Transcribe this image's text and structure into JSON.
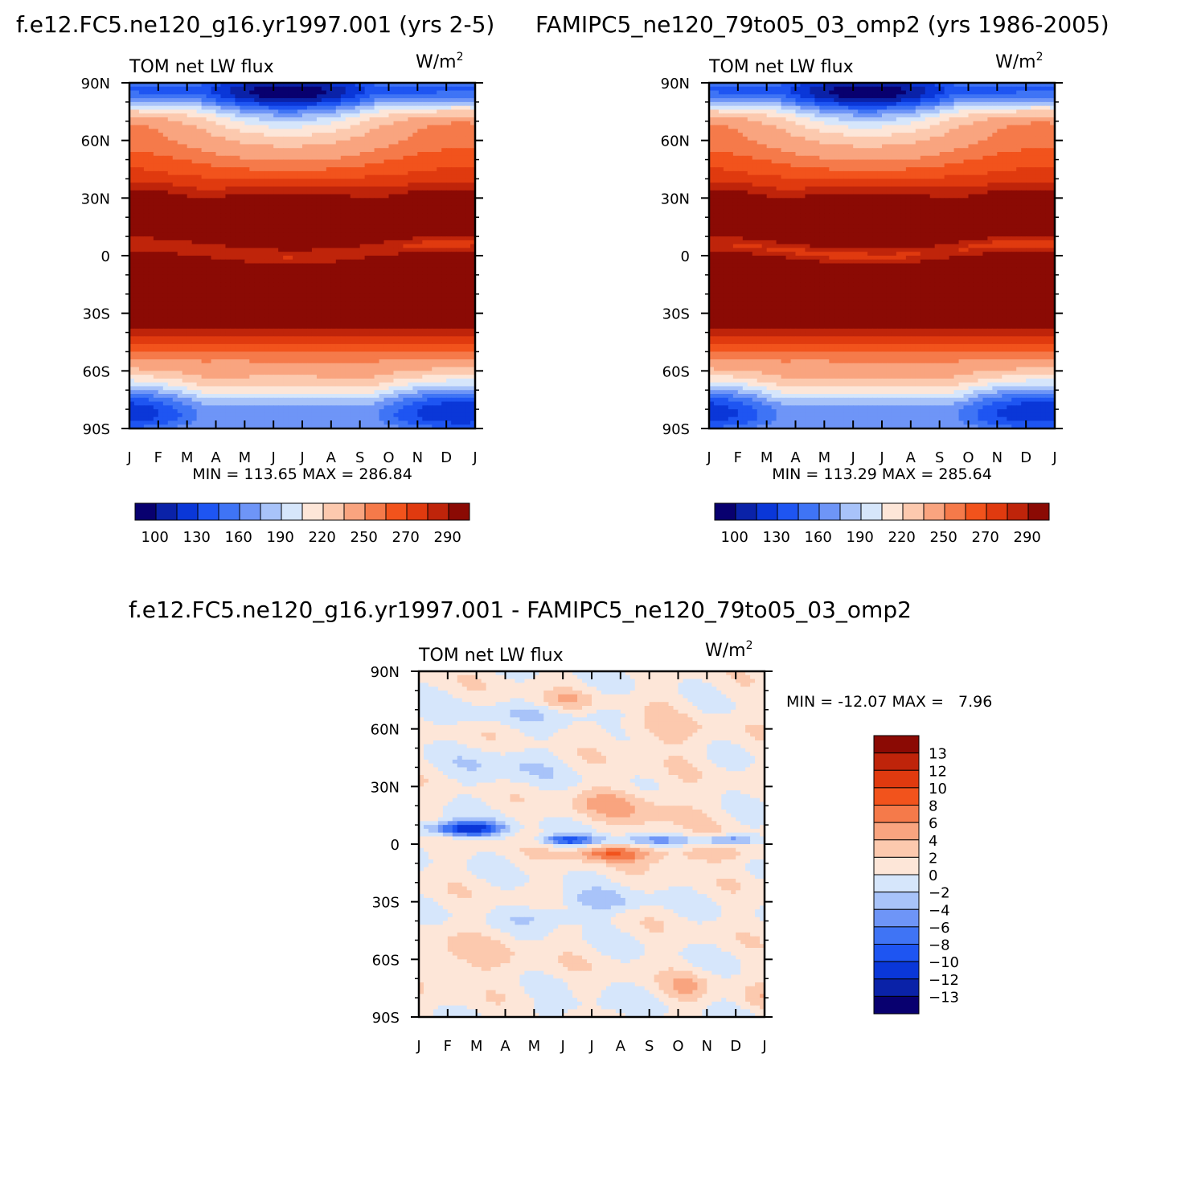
{
  "page": {
    "title_left": "f.e12.FC5.ne120_g16.yr1997.001 (yrs 2-5)",
    "title_right": "FAMIPC5_ne120_79to05_03_omp2 (yrs 1986-2005)",
    "title_diff": "f.e12.FC5.ne120_g16.yr1997.001 - FAMIPC5_ne120_79to05_03_omp2"
  },
  "chart_data": [
    {
      "type": "heatmap",
      "name": "model-panel",
      "variable": "TOM net LW flux",
      "units": "W/m",
      "units_exp": "2",
      "stats": "MIN = 113.65 MAX = 286.84",
      "x_ticks": [
        "J",
        "F",
        "M",
        "A",
        "M",
        "J",
        "J",
        "A",
        "S",
        "O",
        "N",
        "D",
        "J"
      ],
      "y_ticks": [
        "90N",
        "60N",
        "30N",
        "0",
        "30S",
        "60S",
        "90S"
      ],
      "xlim": [
        0,
        12
      ],
      "ylim": [
        -90,
        90
      ],
      "colorbar_labels": [
        "100",
        "130",
        "160",
        "190",
        "220",
        "250",
        "270",
        "290"
      ],
      "field": {
        "params": [
          222,
          85,
          -10,
          25,
          -28,
          20,
          28,
          20,
          10,
          15,
          -105,
          30,
          -118,
          22,
          -55,
          25
        ]
      },
      "levels": [
        100,
        115,
        130,
        145,
        160,
        175,
        190,
        205,
        220,
        235,
        250,
        260,
        270,
        280,
        290
      ],
      "colors": [
        "#08006f",
        "#0a22a8",
        "#0a37d8",
        "#1e55f2",
        "#3f74f5",
        "#6e95f7",
        "#a8c3f9",
        "#d6e6fb",
        "#fde6d8",
        "#fcc9ae",
        "#f9a47f",
        "#f57a4a",
        "#f2531c",
        "#e03a0f",
        "#bf240a",
        "#8b0a04"
      ]
    },
    {
      "type": "heatmap",
      "name": "reference-panel",
      "variable": "TOM net LW flux",
      "units": "W/m",
      "units_exp": "2",
      "stats": "MIN = 113.29 MAX = 285.64",
      "x_ticks": [
        "J",
        "F",
        "M",
        "A",
        "M",
        "J",
        "J",
        "A",
        "S",
        "O",
        "N",
        "D",
        "J"
      ],
      "y_ticks": [
        "90N",
        "60N",
        "30N",
        "0",
        "30S",
        "60S",
        "90S"
      ],
      "xlim": [
        0,
        12
      ],
      "ylim": [
        -90,
        90
      ],
      "colorbar_labels": [
        "100",
        "130",
        "160",
        "190",
        "220",
        "250",
        "270",
        "290"
      ],
      "field": {
        "params": [
          222,
          85,
          -10,
          25,
          -30,
          20,
          27,
          20,
          10,
          15,
          -104,
          30,
          -118,
          22,
          -55,
          25
        ]
      },
      "levels": [
        100,
        115,
        130,
        145,
        160,
        175,
        190,
        205,
        220,
        235,
        250,
        260,
        270,
        280,
        290
      ],
      "colors": [
        "#08006f",
        "#0a22a8",
        "#0a37d8",
        "#1e55f2",
        "#3f74f5",
        "#6e95f7",
        "#a8c3f9",
        "#d6e6fb",
        "#fde6d8",
        "#fcc9ae",
        "#f9a47f",
        "#f57a4a",
        "#f2531c",
        "#e03a0f",
        "#bf240a",
        "#8b0a04"
      ]
    },
    {
      "type": "heatmap",
      "name": "difference-panel",
      "variable": "TOM net LW flux",
      "units": "W/m",
      "units_exp": "2",
      "stats": "MIN = -12.07 MAX =   7.96",
      "x_ticks": [
        "J",
        "F",
        "M",
        "A",
        "M",
        "J",
        "J",
        "A",
        "S",
        "O",
        "N",
        "D",
        "J"
      ],
      "y_ticks": [
        "90N",
        "60N",
        "30N",
        "0",
        "30S",
        "60S",
        "90S"
      ],
      "xlim": [
        0,
        12
      ],
      "ylim": [
        -90,
        90
      ],
      "colorbar_labels": [
        "13",
        "12",
        "10",
        "8",
        "6",
        "4",
        "2",
        "0",
        "-2",
        "-4",
        "-6",
        "-8",
        "-10",
        "-12",
        "-13"
      ],
      "levels": [
        -13,
        -12,
        -10,
        -8,
        -6,
        -4,
        -2,
        0,
        2,
        4,
        6,
        8,
        10,
        12,
        13
      ],
      "colors": [
        "#08006f",
        "#0a22a8",
        "#0a37d8",
        "#1e55f2",
        "#3f74f5",
        "#6e95f7",
        "#a8c3f9",
        "#d6e6fb",
        "#fde6d8",
        "#fcc9ae",
        "#f9a47f",
        "#f57a4a",
        "#f2531c",
        "#e03a0f",
        "#bf240a",
        "#8b0a04"
      ]
    }
  ]
}
